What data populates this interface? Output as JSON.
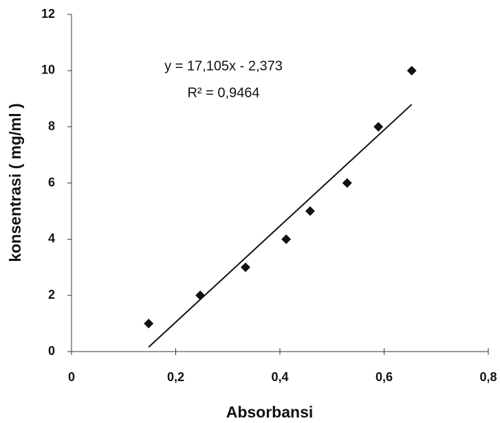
{
  "chart_data": {
    "type": "scatter",
    "x_label": "Absorbansi",
    "y_label": "konsentrasi ( mg/ml )",
    "equation": "y = 17,105x - 2,373",
    "r_squared": "R² = 0,9464",
    "trendline": {
      "slope": 17.105,
      "intercept": -2.373
    },
    "x": [
      0.148,
      0.247,
      0.334,
      0.412,
      0.458,
      0.529,
      0.589,
      0.653
    ],
    "values": [
      1,
      2,
      3,
      4,
      5,
      6,
      8,
      10
    ],
    "color": "#111111",
    "xlim": [
      0,
      0.8
    ],
    "ylim": [
      0,
      12
    ],
    "xticks": [
      0,
      {
        "value": 0.2,
        "label": "0,2"
      },
      {
        "value": 0.4,
        "label": "0,4"
      },
      {
        "value": 0.6,
        "label": "0,6"
      },
      {
        "value": 0.8,
        "label": "0,8"
      }
    ],
    "yticks": [
      0,
      2,
      4,
      6,
      8,
      10,
      12
    ]
  }
}
